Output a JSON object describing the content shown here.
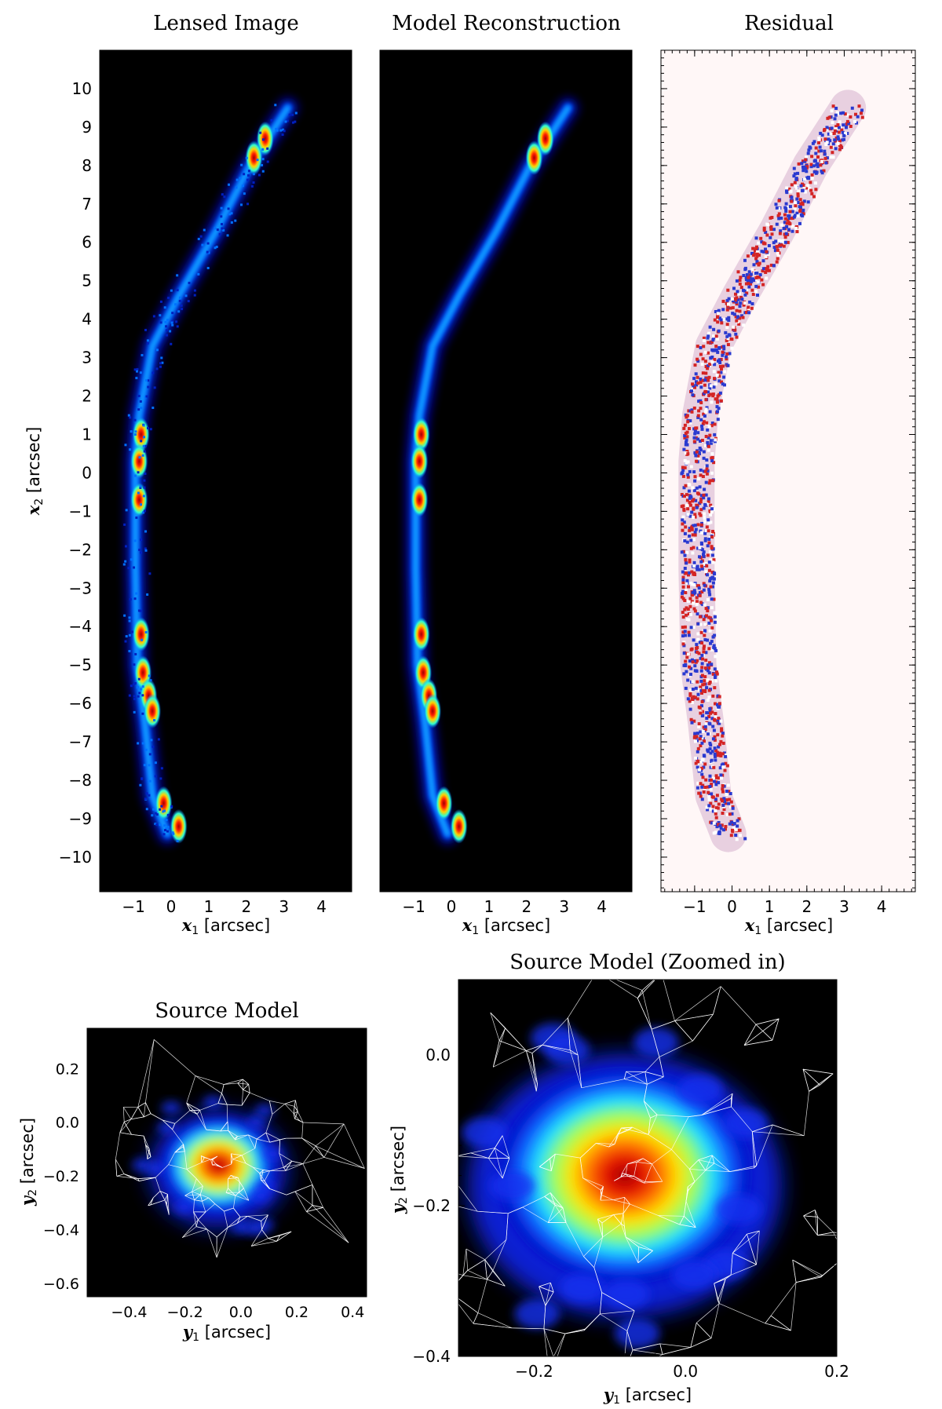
{
  "colors": {
    "background_dark": "#000000",
    "background_light": "#fff7f7",
    "jet_low": "#0000b0",
    "jet_high": "#a00000",
    "residual_pos": "#d22020",
    "residual_neg": "#2030d0",
    "mesh_lines": "#ffffff"
  },
  "chart_data": [
    {
      "id": "lensed",
      "type": "heatmap",
      "title": "Lensed Image",
      "xlabel_var": "x",
      "xlabel_sub": "1",
      "xlabel_unit": " [arcsec]",
      "ylabel_var": "x",
      "ylabel_sub": "2",
      "ylabel_unit": " [arcsec]",
      "xlim": [
        -1.9,
        4.8
      ],
      "ylim": [
        -10.9,
        11
      ],
      "xticks": [
        "−1",
        "0",
        "1",
        "2",
        "3",
        "4"
      ],
      "yticks": [
        "10",
        "9",
        "8",
        "7",
        "6",
        "5",
        "4",
        "3",
        "2",
        "1",
        "0",
        "−1",
        "−2",
        "−3",
        "−4",
        "−5",
        "−6",
        "−7",
        "−8",
        "−9",
        "−10"
      ],
      "arc_path": [
        [
          -0.1,
          -9.4
        ],
        [
          -0.5,
          -8.4
        ],
        [
          -0.7,
          -6.5
        ],
        [
          -0.9,
          -5.0
        ],
        [
          -0.95,
          -2.5
        ],
        [
          -0.95,
          0.3
        ],
        [
          -0.85,
          1.5
        ],
        [
          -0.5,
          3.3
        ],
        [
          0.2,
          4.6
        ],
        [
          1.2,
          6.3
        ],
        [
          2.1,
          8.0
        ],
        [
          3.1,
          9.5
        ]
      ],
      "bright_knots": [
        [
          -0.8,
          1.0
        ],
        [
          -0.85,
          0.3
        ],
        [
          -0.85,
          -0.7
        ],
        [
          -0.8,
          -4.2
        ],
        [
          -0.75,
          -5.2
        ],
        [
          -0.6,
          -5.8
        ],
        [
          -0.5,
          -6.2
        ],
        [
          0.2,
          -9.2
        ],
        [
          -0.2,
          -8.6
        ],
        [
          2.5,
          8.7
        ],
        [
          2.2,
          8.2
        ]
      ]
    },
    {
      "id": "model",
      "type": "heatmap",
      "title": "Model Reconstruction",
      "xlabel_var": "x",
      "xlabel_sub": "1",
      "xlabel_unit": " [arcsec]",
      "xlim": [
        -1.9,
        4.8
      ],
      "ylim": [
        -10.9,
        11
      ],
      "xticks": [
        "−1",
        "0",
        "1",
        "2",
        "3",
        "4"
      ]
    },
    {
      "id": "residual",
      "type": "heatmap",
      "title": "Residual",
      "xlabel_var": "x",
      "xlabel_sub": "1",
      "xlabel_unit": " [arcsec]",
      "xlim": [
        -1.9,
        4.9
      ],
      "ylim": [
        -10.9,
        11
      ],
      "xticks": [
        "−1",
        "0",
        "1",
        "2",
        "3",
        "4"
      ]
    },
    {
      "id": "source",
      "type": "heatmap",
      "title": "Source Model",
      "xlabel_var": "y",
      "xlabel_sub": "1",
      "xlabel_unit": " [arcsec]",
      "ylabel_var": "y",
      "ylabel_sub": "2",
      "ylabel_unit": " [arcsec]",
      "xlim": [
        -0.55,
        0.45
      ],
      "ylim": [
        -0.65,
        0.35
      ],
      "xticks": [
        "−0.4",
        "−0.2",
        "0.0",
        "0.2",
        "0.4"
      ],
      "yticks": [
        "0.2",
        "0.0",
        "−0.2",
        "−0.4",
        "−0.6"
      ],
      "peak": [
        -0.08,
        -0.16
      ]
    },
    {
      "id": "source_zoom",
      "type": "heatmap",
      "title": "Source Model (Zoomed in)",
      "xlabel_var": "y",
      "xlabel_sub": "1",
      "xlabel_unit": " [arcsec]",
      "ylabel_var": "y",
      "ylabel_sub": "2",
      "ylabel_unit": " [arcsec]",
      "xlim": [
        -0.3,
        0.2
      ],
      "ylim": [
        -0.4,
        0.1
      ],
      "xticks": [
        "−0.2",
        "0.0",
        "0.2"
      ],
      "yticks": [
        "0.0",
        "−0.2",
        "−0.4"
      ],
      "peak": [
        -0.08,
        -0.16
      ]
    }
  ]
}
